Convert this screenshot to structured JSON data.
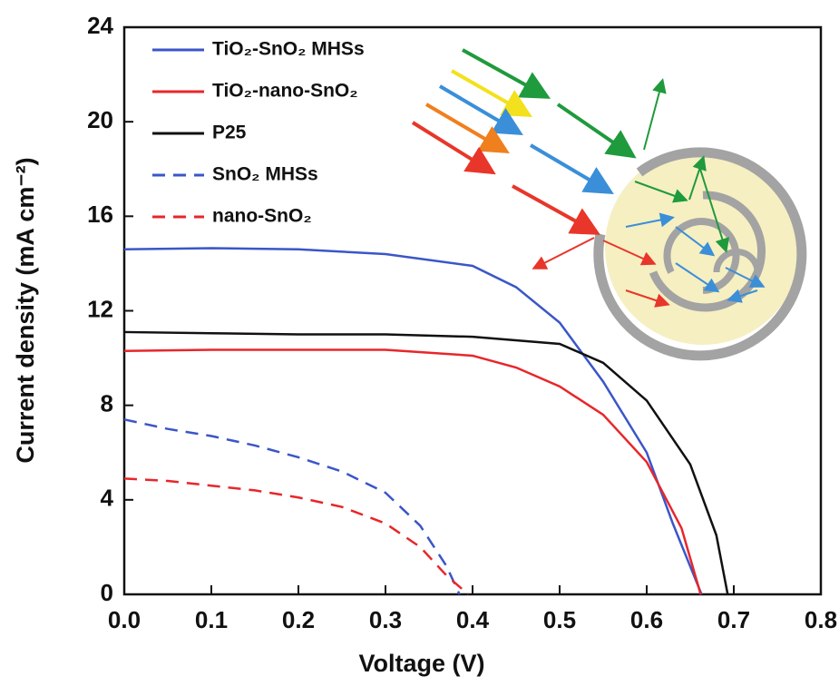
{
  "chart_data": {
    "type": "line",
    "x_label": "Voltage (V)",
    "y_label": "Current density (mA cm⁻²)",
    "xlim": [
      0,
      0.8
    ],
    "ylim": [
      0,
      24
    ],
    "xticks": [
      {
        "value": 0,
        "label": "0.0"
      },
      {
        "value": 0.1,
        "label": "0.1"
      },
      {
        "value": 0.2,
        "label": "0.2"
      },
      {
        "value": 0.3,
        "label": "0.3"
      },
      {
        "value": 0.4,
        "label": "0.4"
      },
      {
        "value": 0.5,
        "label": "0.5"
      },
      {
        "value": 0.6,
        "label": "0.6"
      },
      {
        "value": 0.7,
        "label": "0.7"
      },
      {
        "value": 0.8,
        "label": "0.8"
      }
    ],
    "yticks": [
      0,
      4,
      8,
      12,
      16,
      20,
      24
    ],
    "legend": "upper left",
    "series": [
      {
        "name": "TiO₂-SnO₂ MHSs",
        "color": "#3a56c8",
        "dashed": false,
        "x": [
          0,
          0.1,
          0.2,
          0.3,
          0.4,
          0.45,
          0.5,
          0.55,
          0.6,
          0.63,
          0.663
        ],
        "values": [
          14.6,
          14.65,
          14.6,
          14.4,
          13.9,
          13.0,
          11.5,
          9.0,
          6.0,
          3.0,
          0
        ]
      },
      {
        "name": "TiO₂-nano-SnO₂",
        "color": "#e8262a",
        "dashed": false,
        "x": [
          0,
          0.1,
          0.2,
          0.3,
          0.4,
          0.45,
          0.5,
          0.55,
          0.6,
          0.64,
          0.662
        ],
        "values": [
          10.3,
          10.35,
          10.35,
          10.35,
          10.1,
          9.6,
          8.8,
          7.6,
          5.6,
          2.8,
          0
        ]
      },
      {
        "name": "P25",
        "color": "#111111",
        "dashed": false,
        "x": [
          0,
          0.1,
          0.2,
          0.3,
          0.4,
          0.5,
          0.55,
          0.6,
          0.65,
          0.68,
          0.693
        ],
        "values": [
          11.1,
          11.05,
          11.0,
          11.0,
          10.9,
          10.6,
          9.8,
          8.2,
          5.5,
          2.5,
          0
        ]
      },
      {
        "name": "SnO₂ MHSs",
        "color": "#3a56c8",
        "dashed": true,
        "x": [
          0,
          0.05,
          0.1,
          0.15,
          0.2,
          0.25,
          0.3,
          0.34,
          0.37,
          0.385
        ],
        "values": [
          7.4,
          7.0,
          6.7,
          6.3,
          5.8,
          5.2,
          4.3,
          2.9,
          1.2,
          0
        ]
      },
      {
        "name": "nano-SnO₂",
        "color": "#e8262a",
        "dashed": true,
        "x": [
          0,
          0.05,
          0.1,
          0.15,
          0.2,
          0.25,
          0.3,
          0.34,
          0.37,
          0.395
        ],
        "values": [
          4.9,
          4.8,
          4.6,
          4.4,
          4.1,
          3.7,
          3.0,
          2.0,
          0.8,
          0
        ]
      }
    ]
  }
}
